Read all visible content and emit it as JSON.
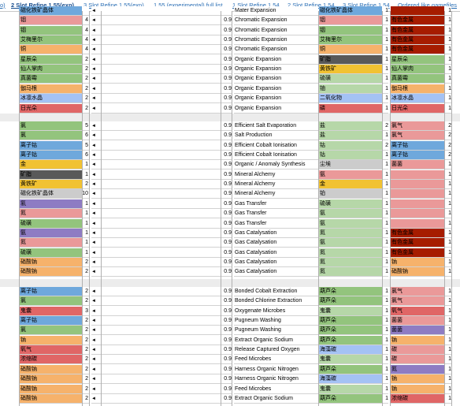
{
  "colors": {
    "blue": "#6fa8dc",
    "green": "#93c47d",
    "orange": "#f6b26b",
    "red": "#e06666",
    "pink": "#ea9999",
    "dkred": "#a61c00",
    "purple": "#8e7cc3",
    "gray": "#595959",
    "yellow": "#f1c232",
    "lgray": "#cccccc",
    "cyan": "#a4c2f4",
    "lgreen": "#b6d7a8"
  },
  "tabs": [
    {
      "label": "o)",
      "active": false
    },
    {
      "label": "2 Slot Refine 1.55(exp)",
      "active": true
    },
    {
      "label": "3 Slot Refine 1.55(exp)",
      "active": false
    },
    {
      "label": "1.55 (experimental) full list",
      "active": false
    },
    {
      "label": "1 Slot Refine 1.54",
      "active": false
    },
    {
      "label": "2 Slot Refine 1.54",
      "active": false
    },
    {
      "label": "3 Slot Refine 1.54",
      "active": false
    },
    {
      "label": "Ordered like gamefiles",
      "active": false
    }
  ],
  "sections": [
    {
      "rows": [
        {
          "in": "磁化铁矿晶体",
          "inc": "blue",
          "n": "",
          "rate": "",
          "recipe": "Mater Expansion",
          "o1": "磁化铁矿晶体",
          "o1c": "blue",
          "n1": "1",
          "o2": "",
          "o2c": "dkred",
          "n2": "1"
        },
        {
          "in": "铟",
          "inc": "pink",
          "n": "4",
          "rate": "0.9",
          "recipe": "Chromatic Expansion",
          "o1": "铟",
          "o1c": "pink",
          "n1": "1",
          "o2": "有色金属",
          "o2c": "dkred",
          "n2": "1"
        },
        {
          "in": "铟",
          "inc": "green",
          "n": "4",
          "rate": "0.9",
          "recipe": "Chromatic Expansion",
          "o1": "铟",
          "o1c": "green",
          "n1": "1",
          "o2": "有色金属",
          "o2c": "dkred",
          "n2": "1"
        },
        {
          "in": "艾梅里尔",
          "inc": "green",
          "n": "4",
          "rate": "0.9",
          "recipe": "Chromatic Expansion",
          "o1": "艾梅里尔",
          "o1c": "green",
          "n1": "1",
          "o2": "有色金属",
          "o2c": "dkred",
          "n2": "1"
        },
        {
          "in": "铜",
          "inc": "orange",
          "n": "4",
          "rate": "0.9",
          "recipe": "Chromatic Expansion",
          "o1": "铜",
          "o1c": "orange",
          "n1": "1",
          "o2": "有色金属",
          "o2c": "dkred",
          "n2": "1"
        },
        {
          "in": "星辰朵",
          "inc": "green",
          "n": "2",
          "rate": "0.9",
          "recipe": "Organic Expansion",
          "o1": "矿脂",
          "o1c": "gray",
          "n1": "1",
          "o2": "星辰朵",
          "o2c": "green",
          "n2": "1"
        },
        {
          "in": "仙人掌肉",
          "inc": "green",
          "n": "2",
          "rate": "0.9",
          "recipe": "Organic Expansion",
          "o1": "黄铁矿",
          "o1c": "yellow",
          "n1": "1",
          "o2": "仙人掌肉",
          "o2c": "green",
          "n2": "1"
        },
        {
          "in": "真菌霉",
          "inc": "green",
          "n": "2",
          "rate": "0.9",
          "recipe": "Organic Expansion",
          "o1": "硫磺",
          "o1c": "lgreen",
          "n1": "1",
          "o2": "真菌霉",
          "o2c": "green",
          "n2": "1"
        },
        {
          "in": "伽马根",
          "inc": "orange",
          "n": "2",
          "rate": "0.9",
          "recipe": "Organic Expansion",
          "o1": "铀",
          "o1c": "lgreen",
          "n1": "1",
          "o2": "伽马根",
          "o2c": "orange",
          "n2": "1"
        },
        {
          "in": "冰凛水晶",
          "inc": "cyan",
          "n": "2",
          "rate": "0.9",
          "recipe": "Organic Expansion",
          "o1": "二氧化物",
          "o1c": "cyan",
          "n1": "1",
          "o2": "冰凛水晶",
          "o2c": "cyan",
          "n2": "1"
        },
        {
          "in": "日光朵",
          "inc": "red",
          "n": "2",
          "rate": "0.9",
          "recipe": "Organic Expansion",
          "o1": "磷",
          "o1c": "red",
          "n1": "1",
          "o2": "日光朵",
          "o2c": "red",
          "n2": "1"
        }
      ]
    },
    {
      "rows": [
        {
          "in": "氯",
          "inc": "green",
          "n": "5",
          "rate": "0.9",
          "recipe": "Efficient Salt Evaporation",
          "o1": "盐",
          "o1c": "lgreen",
          "n1": "2",
          "o2": "氯气",
          "o2c": "pink",
          "n2": "2"
        },
        {
          "in": "氯",
          "inc": "green",
          "n": "6",
          "rate": "0.9",
          "recipe": "Salt Production",
          "o1": "盐",
          "o1c": "lgreen",
          "n1": "1",
          "o2": "氯气",
          "o2c": "pink",
          "n2": "2"
        },
        {
          "in": "离子钴",
          "inc": "blue",
          "n": "5",
          "rate": "0.9",
          "recipe": "Efficient Cobalt Ionisation",
          "o1": "钴",
          "o1c": "lgreen",
          "n1": "2",
          "o2": "离子钴",
          "o2c": "blue",
          "n2": "2"
        },
        {
          "in": "离子钴",
          "inc": "blue",
          "n": "6",
          "rate": "0.9",
          "recipe": "Efficient Cobalt Ionisation",
          "o1": "钴",
          "o1c": "lgreen",
          "n1": "1",
          "o2": "离子钴",
          "o2c": "blue",
          "n2": "2"
        },
        {
          "in": "金",
          "inc": "yellow",
          "n": "1",
          "rate": "0.9",
          "recipe": "Organic / Anomaly Synthesis",
          "o1": "尘埃",
          "o1c": "lgray",
          "n1": "1",
          "o2": "菌菌",
          "o2c": "pink",
          "n2": "1"
        },
        {
          "in": "矿脂",
          "inc": "gray",
          "n": "1",
          "rate": "0.9",
          "recipe": "Mineral Alchemy",
          "o1": "氨",
          "o1c": "pink",
          "n1": "1",
          "o2": "",
          "o2c": "pink",
          "n2": "1"
        },
        {
          "in": "黄铁矿",
          "inc": "yellow",
          "n": "2",
          "rate": "0.9",
          "recipe": "Mineral Alchemy",
          "o1": "金",
          "o1c": "yellow",
          "n1": "1",
          "o2": "",
          "o2c": "pink",
          "n2": "1"
        },
        {
          "in": "磁化铁矿晶体",
          "inc": "lgray",
          "n": "10",
          "rate": "0.9",
          "recipe": "Mineral Alchemy",
          "o1": "铂",
          "o1c": "lgray",
          "n1": "1",
          "o2": "",
          "o2c": "pink",
          "n2": "1"
        },
        {
          "in": "氡",
          "inc": "purple",
          "n": "1",
          "rate": "0.9",
          "recipe": "Gas Transfer",
          "o1": "硫磺",
          "o1c": "lgreen",
          "n1": "1",
          "o2": "",
          "o2c": "pink",
          "n2": "1"
        },
        {
          "in": "氮",
          "inc": "pink",
          "n": "1",
          "rate": "0.9",
          "recipe": "Gas Transfer",
          "o1": "氨",
          "o1c": "lgreen",
          "n1": "1",
          "o2": "",
          "o2c": "pink",
          "n2": "1"
        },
        {
          "in": "硫磺",
          "inc": "green",
          "n": "1",
          "rate": "0.9",
          "recipe": "Gas Transfer",
          "o1": "氨",
          "o1c": "lgreen",
          "n1": "1",
          "o2": "",
          "o2c": "pink",
          "n2": "1"
        },
        {
          "in": "氨",
          "inc": "purple",
          "n": "1",
          "rate": "0.9",
          "recipe": "Gas Catalysation",
          "o1": "氮",
          "o1c": "lgreen",
          "n1": "1",
          "o2": "有色金属",
          "o2c": "dkred",
          "n2": "1"
        },
        {
          "in": "氮",
          "inc": "pink",
          "n": "1",
          "rate": "0.9",
          "recipe": "Gas Catalysation",
          "o1": "氨",
          "o1c": "lgreen",
          "n1": "1",
          "o2": "有色金属",
          "o2c": "dkred",
          "n2": "1"
        },
        {
          "in": "硫磺",
          "inc": "green",
          "n": "1",
          "rate": "0.9",
          "recipe": "Gas Catalysation",
          "o1": "氮",
          "o1c": "lgreen",
          "n1": "1",
          "o2": "有色金属",
          "o2c": "dkred",
          "n2": "1"
        },
        {
          "in": "硝酸钠",
          "inc": "orange",
          "n": "2",
          "rate": "0.9",
          "recipe": "Gas Catalysation",
          "o1": "氮",
          "o1c": "lgreen",
          "n1": "1",
          "o2": "钠",
          "o2c": "orange",
          "n2": "1"
        },
        {
          "in": "硝酸钠",
          "inc": "orange",
          "n": "2",
          "rate": "0.9",
          "recipe": "Gas Catalysation",
          "o1": "氮",
          "o1c": "lgreen",
          "n1": "1",
          "o2": "硝酸钠",
          "o2c": "orange",
          "n2": "1"
        }
      ]
    },
    {
      "rows": [
        {
          "in": "离子钴",
          "inc": "blue",
          "n": "2",
          "rate": "0.9",
          "recipe": "Bonded Cobalt Extraction",
          "o1": "葫芦朵",
          "o1c": "green",
          "n1": "1",
          "o2": "氯气",
          "o2c": "pink",
          "n2": "1"
        },
        {
          "in": "氯",
          "inc": "green",
          "n": "2",
          "rate": "0.9",
          "recipe": "Bonded Chlorine Extraction",
          "o1": "葫芦朵",
          "o1c": "green",
          "n1": "1",
          "o2": "氯气",
          "o2c": "pink",
          "n2": "1"
        },
        {
          "in": "鬼囊",
          "inc": "red",
          "n": "3",
          "rate": "0.9",
          "recipe": "Oxygenate Microbes",
          "o1": "鬼囊",
          "o1c": "lgreen",
          "n1": "1",
          "o2": "氧气",
          "o2c": "red",
          "n2": "1"
        },
        {
          "in": "离子钴",
          "inc": "blue",
          "n": "2",
          "rate": "0.9",
          "recipe": "Pugneum Washing",
          "o1": "葫芦朵",
          "o1c": "green",
          "n1": "1",
          "o2": "菌菌",
          "o2c": "pink",
          "n2": "1"
        },
        {
          "in": "氯",
          "inc": "green",
          "n": "2",
          "rate": "0.9",
          "recipe": "Pugneum Washing",
          "o1": "葫芦朵",
          "o1c": "green",
          "n1": "1",
          "o2": "菌菌",
          "o2c": "purple",
          "n2": "1"
        },
        {
          "in": "钠",
          "inc": "orange",
          "n": "2",
          "rate": "0.9",
          "recipe": "Extract Organic Sodium",
          "o1": "葫芦朵",
          "o1c": "green",
          "n1": "1",
          "o2": "钠",
          "o2c": "orange",
          "n2": "1"
        },
        {
          "in": "氧气",
          "inc": "red",
          "n": "2",
          "rate": "0.9",
          "recipe": "Release Captured Oxygen",
          "o1": "海藻碳",
          "o1c": "cyan",
          "n1": "1",
          "o2": "碳",
          "o2c": "pink",
          "n2": "1"
        },
        {
          "in": "浓缩碳",
          "inc": "red",
          "n": "2",
          "rate": "0.9",
          "recipe": "Feed Microbes",
          "o1": "鬼囊",
          "o1c": "lgreen",
          "n1": "1",
          "o2": "碳",
          "o2c": "pink",
          "n2": "1"
        },
        {
          "in": "硝酸钠",
          "inc": "orange",
          "n": "2",
          "rate": "0.9",
          "recipe": "Harness Organic Nitrogen",
          "o1": "葫芦朵",
          "o1c": "green",
          "n1": "1",
          "o2": "氮",
          "o2c": "purple",
          "n2": "1"
        },
        {
          "in": "硝酸钠",
          "inc": "orange",
          "n": "2",
          "rate": "0.9",
          "recipe": "Harness Organic Nitrogen",
          "o1": "海藻碳",
          "o1c": "cyan",
          "n1": "1",
          "o2": "钠",
          "o2c": "orange",
          "n2": "1"
        },
        {
          "in": "硝酸钠",
          "inc": "orange",
          "n": "2",
          "rate": "0.9",
          "recipe": "Feed Microbes",
          "o1": "鬼囊",
          "o1c": "lgreen",
          "n1": "1",
          "o2": "钠",
          "o2c": "orange",
          "n2": "1"
        },
        {
          "in": "硝酸钠",
          "inc": "orange",
          "n": "2",
          "rate": "0.9",
          "recipe": "Extract Organic Sodium",
          "o1": "葫芦朵",
          "o1c": "green",
          "n1": "1",
          "o2": "浓缩碳",
          "o2c": "red",
          "n2": "1"
        }
      ]
    }
  ]
}
